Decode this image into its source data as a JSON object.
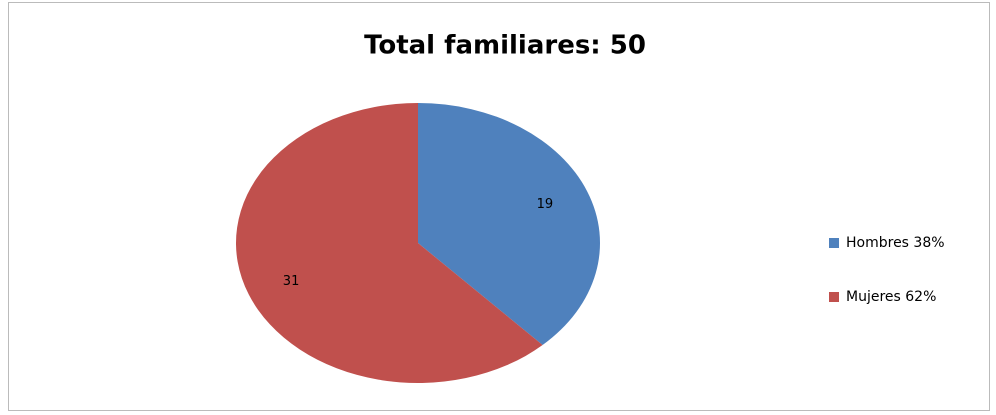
{
  "chart_data": {
    "type": "pie",
    "title": "Total familiares: 50",
    "categories": [
      "Hombres 38%",
      "Mujeres 62%"
    ],
    "values": [
      19,
      31
    ],
    "colors": [
      "#4f81bd",
      "#c0504d"
    ],
    "legend": "right"
  }
}
